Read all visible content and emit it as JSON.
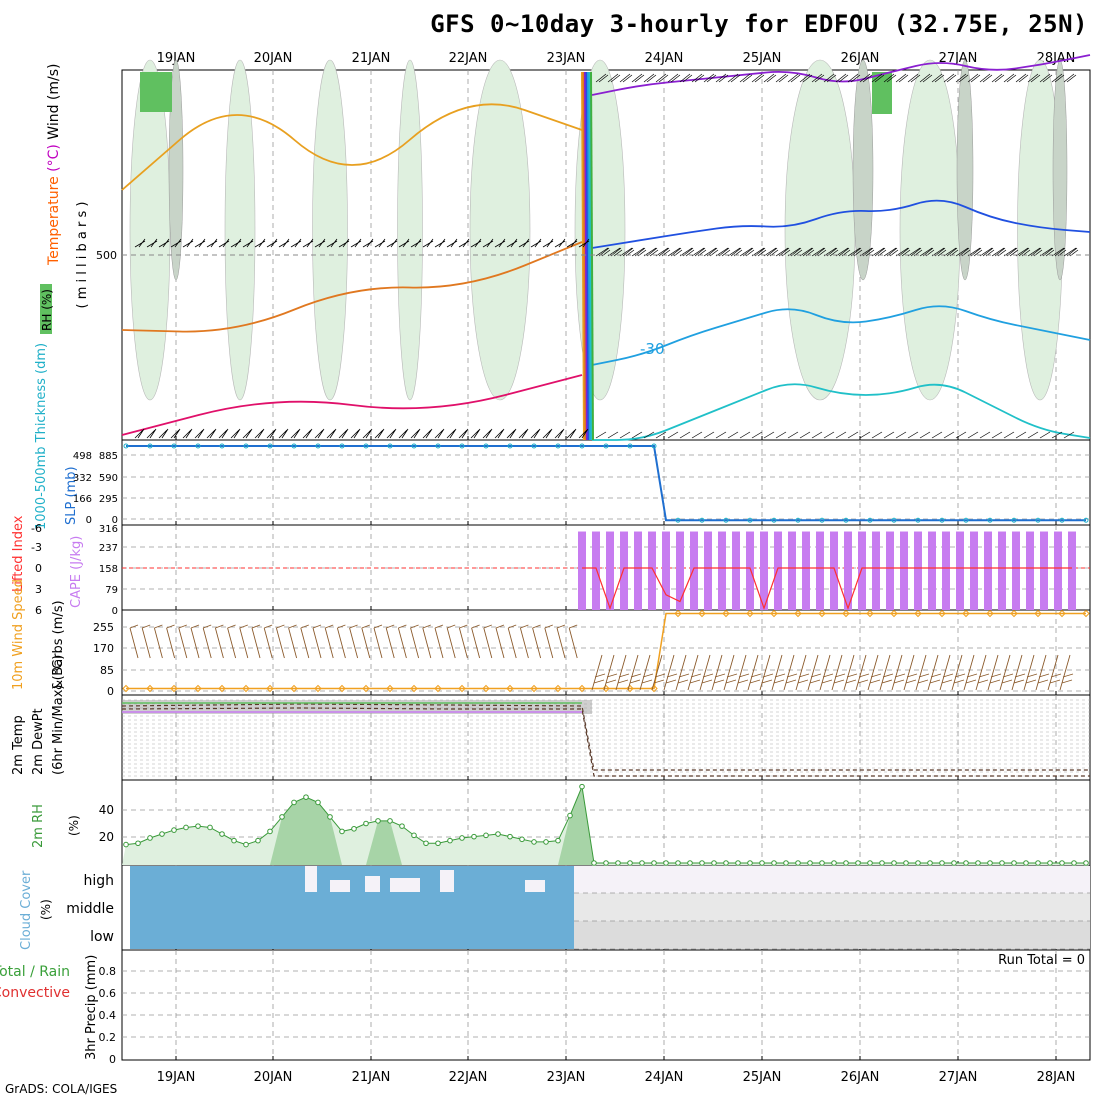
{
  "page": {
    "title": "GFS 0~10day 3-hourly for EDFOU (32.75E, 25N)",
    "footer": "GrADS: COLA/IGES"
  },
  "colors": {
    "rh_green": "#60c060",
    "rh_light": "#dff0df",
    "cloud_blue": "#6baed6",
    "cape_purple": "#c77cf0",
    "lifted_red": "#ff3030",
    "wind_orange": "#f0a020",
    "barb_brown": "#8b5a2b",
    "slp_blue": "#1f6fd0",
    "thick_cyan": "#20b0c8",
    "rh2m_green": "#3a9a3a"
  },
  "chart_data": [
    {
      "type": "heatmap",
      "name": "upper_air",
      "x_labels": [
        "19JAN",
        "20JAN",
        "21JAN",
        "22JAN",
        "23JAN",
        "24JAN",
        "25JAN",
        "26JAN",
        "27JAN",
        "28JAN"
      ],
      "ylabel_parts": [
        {
          "text": "Wind (m/s)",
          "color": "#000000"
        },
        {
          "text": "(°C)",
          "color": "#c000c0"
        },
        {
          "text": "Temperature",
          "color": "#ff6000"
        }
      ],
      "ylabel2": "( m i l l i b a r s )",
      "rh_label": "RH (%)",
      "y_ticks": [
        "500"
      ],
      "contour_label": "-30",
      "temperature_lines": [
        {
          "color": "#e8a020",
          "values": [
            620,
            580,
            820,
            800,
            800
          ]
        },
        {
          "color": "#e07820",
          "values": [
            640,
            650,
            690,
            680,
            700
          ]
        },
        {
          "color": "#e0106a",
          "values": [
            660,
            700,
            720,
            720
          ]
        },
        {
          "color": "#8a1fd0",
          "values": [
            95,
            85,
            80,
            75,
            70,
            85,
            72,
            60,
            72,
            65,
            55
          ]
        },
        {
          "color": "#2050e0",
          "values": [
            248,
            240,
            232,
            225,
            228,
            210,
            212,
            196,
            218,
            228,
            232
          ]
        },
        {
          "color": "#20a0e0",
          "values": [
            365,
            355,
            335,
            320,
            305,
            325,
            318,
            302,
            320,
            330,
            340
          ]
        },
        {
          "color": "#20c0c8",
          "values": [
            440,
            440,
            420,
            400,
            380,
            395,
            395,
            380,
            405,
            430,
            438
          ]
        }
      ]
    },
    {
      "type": "line",
      "name": "slp_thickness",
      "ylabel_cyan": "1000-500mb Thickness (dm)",
      "ylabel_blue": "SLP (mb)",
      "left_ticks": [
        "498",
        "332",
        "166",
        "0"
      ],
      "right_ticks": [
        "885",
        "590",
        "295",
        "0"
      ],
      "ylim": [
        0,
        1000
      ],
      "series": [
        {
          "color": "#1f6fd0",
          "values": [
            1000,
            1000,
            1000,
            1000,
            1000,
            1000,
            1000,
            1000,
            1000,
            1000,
            1000,
            1000,
            1000,
            1000,
            1000,
            1000,
            1000,
            1000,
            1000,
            1000,
            1000,
            1000,
            1000,
            1000,
            1000,
            1000,
            1000,
            1000,
            1000,
            1000,
            1000,
            1000,
            1000,
            1000,
            1000,
            1000,
            1000,
            1000,
            1000,
            1000,
            1000,
            1000,
            1000,
            1000,
            1000,
            10,
            10,
            10,
            10,
            10,
            10,
            10,
            10,
            10,
            10,
            10,
            10,
            10,
            10,
            10,
            10,
            10,
            10,
            10,
            10,
            10,
            10,
            10,
            10,
            10,
            10,
            10,
            10,
            10,
            10,
            10,
            10,
            10,
            10,
            10,
            10
          ]
        }
      ]
    },
    {
      "type": "bar",
      "name": "cape_lifted",
      "ylabel_red": "Lifted Index",
      "ylabel_purple": "CAPE (J/kg)",
      "left_ticks": [
        "-6",
        "-3",
        "0",
        "3",
        "6"
      ],
      "right_ticks": [
        "316",
        "237",
        "158",
        "79",
        "0"
      ],
      "cape_values": [
        310,
        310,
        310,
        310,
        310,
        310,
        310,
        310,
        310,
        310,
        310,
        310,
        310,
        310,
        310,
        310,
        310,
        310,
        310,
        310,
        310,
        310,
        310,
        310,
        310,
        310,
        310,
        310,
        310,
        310,
        310,
        310,
        310,
        310,
        310,
        310
      ],
      "lifted_values": [
        0,
        0,
        6,
        0,
        0,
        0,
        4,
        5,
        0,
        0,
        0,
        0,
        0,
        6,
        0,
        0,
        0,
        0,
        0,
        6,
        0,
        0,
        0,
        0,
        0,
        0,
        0,
        0,
        0,
        0,
        0,
        0,
        0,
        0,
        0,
        0
      ]
    },
    {
      "type": "line",
      "name": "wind10m",
      "ylabel_orange": "10m Wind Speed",
      "ylabel_black": "& Barbs (m/s)",
      "y_ticks": [
        "255",
        "170",
        "85",
        "0"
      ],
      "ylim": [
        0,
        300
      ],
      "series": [
        {
          "color": "#f0a020",
          "values": [
            10,
            10,
            10,
            10,
            10,
            10,
            10,
            10,
            10,
            10,
            10,
            10,
            10,
            10,
            10,
            10,
            10,
            10,
            10,
            10,
            10,
            10,
            10,
            10,
            10,
            10,
            10,
            10,
            10,
            10,
            10,
            10,
            10,
            10,
            10,
            10,
            10,
            10,
            10,
            10,
            10,
            10,
            10,
            10,
            10,
            310,
            310,
            310,
            310,
            310,
            310,
            310,
            310,
            310,
            310,
            310,
            310,
            310,
            310,
            310,
            310,
            310,
            310,
            310,
            310,
            310,
            310,
            310,
            310,
            310,
            310,
            310,
            310,
            310,
            310,
            310,
            310,
            310,
            310,
            310,
            310
          ]
        }
      ]
    },
    {
      "type": "line",
      "name": "temp2m",
      "ylabel_parts": [
        "2m Temp",
        "2m DewPt",
        "(6hr Min/Max) (°C)"
      ]
    },
    {
      "type": "area",
      "name": "rh2m",
      "ylabel": "2m RH",
      "yunit": "(%)",
      "y_ticks": [
        "40",
        "20"
      ],
      "ylim": [
        0,
        60
      ],
      "values": [
        14,
        15,
        19,
        22,
        25,
        27,
        28,
        27,
        22,
        17,
        14,
        17,
        24,
        35,
        46,
        50,
        46,
        35,
        24,
        26,
        30,
        32,
        32,
        28,
        21,
        15,
        15,
        17,
        19,
        20,
        21,
        22,
        20,
        18,
        16,
        16,
        17,
        36,
        58,
        0,
        0,
        0,
        0,
        0,
        0,
        0,
        0,
        0,
        0,
        0,
        0,
        0,
        0,
        0,
        0,
        0,
        0,
        0,
        0,
        0,
        0,
        0,
        0,
        0,
        0,
        0,
        0,
        0,
        0,
        0,
        0,
        0,
        0,
        0,
        0,
        0,
        0,
        0,
        0,
        0,
        0
      ]
    },
    {
      "type": "bar",
      "name": "cloud",
      "ylabel": "Cloud Cover",
      "yunit": "(%)",
      "levels": [
        "high",
        "middle",
        "low"
      ]
    },
    {
      "type": "bar",
      "name": "precip",
      "ylabel_left": "Total / Rain",
      "ylabel_left2": "Convective",
      "ylabel": "3hr Precip (mm)",
      "y_ticks": [
        "0.8",
        "0.6",
        "0.4",
        "0.2",
        "0"
      ],
      "run_total": "Run Total = 0",
      "values": []
    }
  ]
}
